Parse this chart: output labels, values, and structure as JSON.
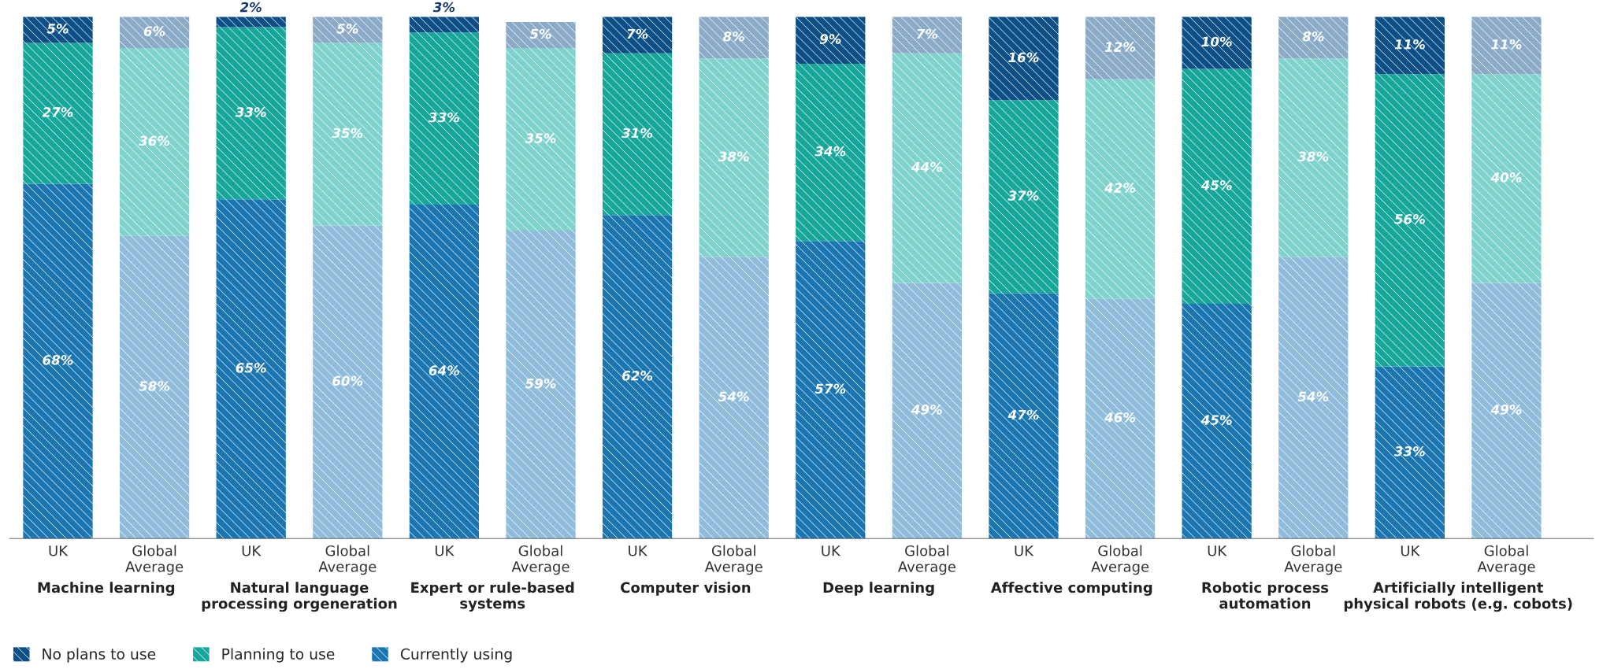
{
  "chart_data": {
    "type": "bar",
    "stacked": true,
    "categories": [
      "UK",
      "Global\nAverage",
      "UK",
      "Global\nAverage",
      "UK",
      "Global\nAverage",
      "UK",
      "Global\nAverage",
      "UK",
      "Global\nAverage",
      "UK",
      "Global\nAverage",
      "UK",
      "Global\nAverage",
      "UK",
      "Global\nAverage"
    ],
    "series": [
      {
        "name": "Currently using",
        "color": "#1b75b0",
        "colors": [
          "#1b75b0",
          "#8fbcdb",
          "#1b75b0",
          "#8fbcdb",
          "#1b75b0",
          "#8fbcdb",
          "#1b75b0",
          "#8fbcdb",
          "#1b75b0",
          "#8fbcdb",
          "#1b75b0",
          "#8fbcdb",
          "#1b75b0",
          "#8fbcdb",
          "#1b75b0",
          "#8fbcdb"
        ],
        "values": [
          68,
          58,
          65,
          60,
          64,
          59,
          62,
          54,
          57,
          49,
          47,
          46,
          45,
          54,
          33,
          49
        ],
        "value_labels": [
          "68%",
          "58%",
          "65%",
          "60%",
          "64%",
          "59%",
          "62%",
          "54%",
          "57%",
          "49%",
          "47%",
          "46%",
          "45%",
          "54%",
          "33%",
          "49%"
        ]
      },
      {
        "name": "Planning to use",
        "color": "#17a69a",
        "colors": [
          "#17a69a",
          "#7fd3cc",
          "#17a69a",
          "#7fd3cc",
          "#17a69a",
          "#7fd3cc",
          "#17a69a",
          "#7fd3cc",
          "#17a69a",
          "#7fd3cc",
          "#17a69a",
          "#7fd3cc",
          "#17a69a",
          "#7fd3cc",
          "#17a69a",
          "#7fd3cc"
        ],
        "values": [
          27,
          36,
          33,
          35,
          33,
          35,
          31,
          38,
          34,
          44,
          37,
          42,
          45,
          38,
          56,
          40
        ],
        "value_labels": [
          "27%",
          "36%",
          "33%",
          "35%",
          "33%",
          "35%",
          "31%",
          "38%",
          "34%",
          "44%",
          "37%",
          "42%",
          "45%",
          "38%",
          "56%",
          "40%"
        ]
      },
      {
        "name": "No plans to use",
        "color": "#0b4f86",
        "colors": [
          "#0b4f86",
          "#8aaac8",
          "#0b4f86",
          "#8aaac8",
          "#0b4f86",
          "#8aaac8",
          "#0b4f86",
          "#8aaac8",
          "#0b4f86",
          "#8aaac8",
          "#0b4f86",
          "#8aaac8",
          "#0b4f86",
          "#8aaac8",
          "#0b4f86",
          "#8aaac8"
        ],
        "values": [
          5,
          6,
          2,
          5,
          3,
          5,
          7,
          8,
          9,
          7,
          16,
          12,
          10,
          8,
          11,
          11
        ],
        "value_labels": [
          "5%",
          "6%",
          "2%",
          "5%",
          "3%",
          "5%",
          "7%",
          "8%",
          "9%",
          "7%",
          "16%",
          "12%",
          "10%",
          "8%",
          "11%",
          "11%"
        ]
      }
    ],
    "ylim": [
      0,
      100
    ],
    "tick_labels": "x",
    "grid": false,
    "legend": "bottom left",
    "annotations": [
      "Machine learning",
      "Natural language\nprocessing orgeneration",
      "Expert or rule-based\nsystems",
      "Computer vision",
      "Deep learning",
      "Affective computing",
      "Robotic process\nautomation",
      "Artificially intelligent\nphysical robots (e.g. cobots)"
    ]
  }
}
